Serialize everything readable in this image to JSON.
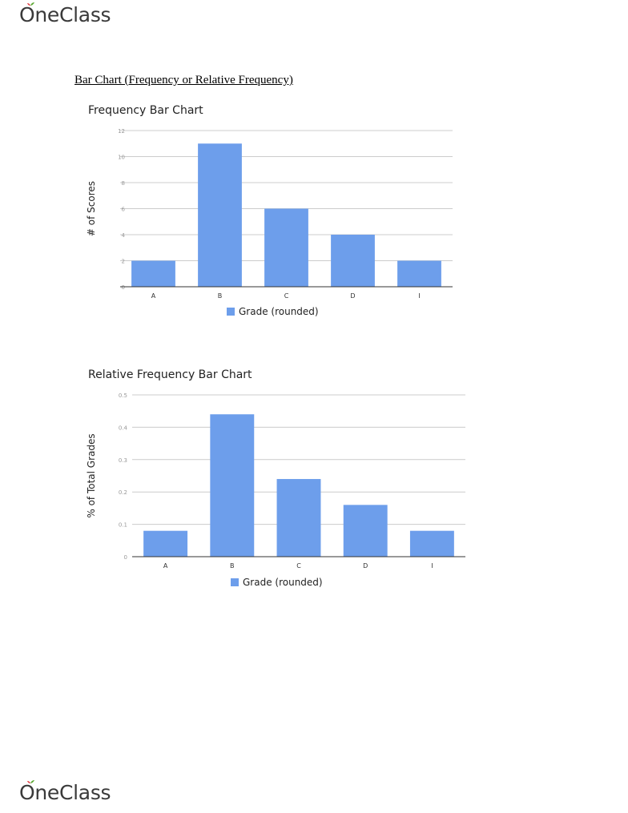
{
  "brand": {
    "name": "OneClass",
    "accent_green": "#5aa832",
    "accent_red": "#e0393e"
  },
  "document": {
    "heading": "Bar Chart (Frequency or Relative Frequency)"
  },
  "chart_data": [
    {
      "type": "bar",
      "title": "Frequency Bar Chart",
      "categories": [
        "A",
        "B",
        "C",
        "D",
        "I"
      ],
      "series": [
        {
          "name": "Grade (rounded)",
          "values": [
            2,
            11,
            6,
            4,
            2
          ]
        }
      ],
      "xlabel": "",
      "ylabel": "# of Scores",
      "ylim": [
        0,
        12
      ],
      "yticks": [
        0,
        2,
        4,
        6,
        8,
        10,
        12
      ],
      "ytick_labels": [
        "0",
        "2",
        "4",
        "6",
        "8",
        "10",
        "12"
      ],
      "grid": true,
      "legend": "bottom",
      "bar_color": "#6d9eeb"
    },
    {
      "type": "bar",
      "title": "Relative Frequency Bar Chart",
      "categories": [
        "A",
        "B",
        "C",
        "D",
        "I"
      ],
      "series": [
        {
          "name": "Grade (rounded)",
          "values": [
            0.08,
            0.44,
            0.24,
            0.16,
            0.08
          ]
        }
      ],
      "xlabel": "",
      "ylabel": "% of Total Grades",
      "ylim": [
        0,
        0.5
      ],
      "yticks": [
        0,
        0.1,
        0.2,
        0.3,
        0.4,
        0.5
      ],
      "ytick_labels": [
        "0",
        "0.1",
        "0.2",
        "0.3",
        "0.4",
        "0.5"
      ],
      "grid": true,
      "legend": "bottom",
      "bar_color": "#6d9eeb"
    }
  ]
}
